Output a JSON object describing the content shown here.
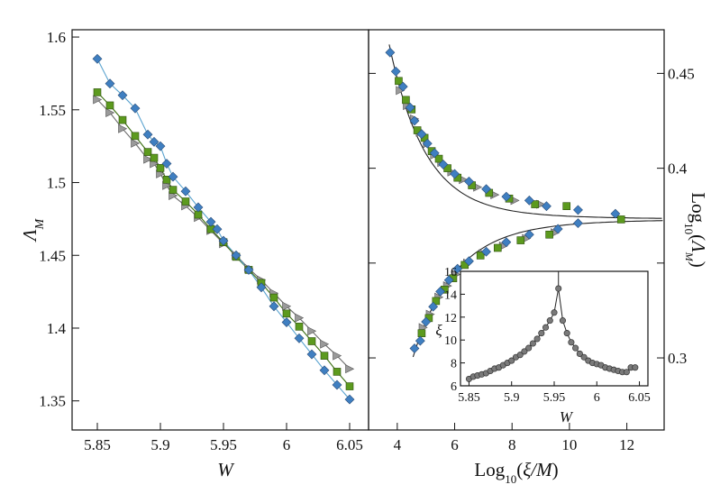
{
  "chart_data": [
    {
      "name": "left-panel",
      "type": "line",
      "xlabel": "W",
      "ylabel": "Λ_M",
      "xlim": [
        5.83,
        6.065
      ],
      "ylim": [
        1.33,
        1.605
      ],
      "x_ticks": [
        "5.85",
        "5.9",
        "5.95",
        "6",
        "6.05"
      ],
      "y_ticks": [
        "1.35",
        "1.4",
        "1.45",
        "1.5",
        "1.55",
        "1.6"
      ],
      "grid": false,
      "series": [
        {
          "marker": "diamond",
          "color": "#3f7fc1",
          "line_color": "#5aa3cf",
          "x": [
            5.85,
            5.86,
            5.87,
            5.88,
            5.89,
            5.895,
            5.9,
            5.905,
            5.91,
            5.92,
            5.93,
            5.94,
            5.945,
            5.95,
            5.96,
            5.97,
            5.98,
            5.99,
            6.0,
            6.01,
            6.02,
            6.03,
            6.04,
            6.05
          ],
          "y": [
            1.585,
            1.568,
            1.56,
            1.551,
            1.533,
            1.528,
            1.525,
            1.513,
            1.504,
            1.494,
            1.483,
            1.473,
            1.468,
            1.46,
            1.45,
            1.44,
            1.428,
            1.415,
            1.404,
            1.393,
            1.382,
            1.371,
            1.361,
            1.351
          ]
        },
        {
          "marker": "square",
          "color": "#5c9a1e",
          "line_color": "#3b6e10",
          "x": [
            5.85,
            5.86,
            5.87,
            5.88,
            5.89,
            5.895,
            5.9,
            5.905,
            5.91,
            5.92,
            5.93,
            5.94,
            5.95,
            5.96,
            5.97,
            5.98,
            5.99,
            6.0,
            6.01,
            6.02,
            6.03,
            6.04,
            6.05
          ],
          "y": [
            1.562,
            1.553,
            1.543,
            1.532,
            1.521,
            1.517,
            1.51,
            1.502,
            1.495,
            1.487,
            1.478,
            1.468,
            1.459,
            1.449,
            1.44,
            1.431,
            1.421,
            1.41,
            1.401,
            1.391,
            1.381,
            1.37,
            1.36
          ]
        },
        {
          "marker": "triangle-right",
          "color": "#9a9a9a",
          "line_color": "#6b6b6b",
          "x": [
            5.85,
            5.86,
            5.87,
            5.88,
            5.89,
            5.895,
            5.9,
            5.905,
            5.91,
            5.92,
            5.93,
            5.94,
            5.95,
            5.96,
            5.97,
            5.98,
            5.99,
            6.0,
            6.01,
            6.02,
            6.03,
            6.04,
            6.05
          ],
          "y": [
            1.557,
            1.548,
            1.537,
            1.527,
            1.516,
            1.513,
            1.506,
            1.498,
            1.491,
            1.484,
            1.476,
            1.467,
            1.458,
            1.45,
            1.441,
            1.433,
            1.424,
            1.415,
            1.407,
            1.398,
            1.389,
            1.381,
            1.372
          ]
        }
      ]
    },
    {
      "name": "right-panel",
      "type": "scatter",
      "xlabel": "Log10(ξ/M)",
      "ylabel": "Log10(Λ_M)",
      "xlim": [
        3.0,
        13.3
      ],
      "ylim": [
        0.262,
        0.473
      ],
      "x_ticks": [
        "4",
        "6",
        "8",
        "10",
        "12"
      ],
      "y_ticks": [
        "0.3",
        "0.35",
        "0.4",
        "0.45"
      ],
      "y_tick_labels": [
        "0.3",
        "0.4",
        "0.45"
      ],
      "grid": false,
      "series": [
        {
          "marker": "diamond",
          "color": "#3f7fc1",
          "x": [
            3.75,
            3.95,
            4.2,
            4.45,
            4.6,
            4.85,
            5.05,
            5.3,
            5.6,
            6.0,
            6.5,
            7.1,
            7.8,
            8.6,
            9.2,
            10.3,
            11.6,
            4.6,
            4.8,
            5.0,
            5.25,
            5.5,
            5.8,
            6.1,
            6.5,
            7.1,
            7.8,
            8.6,
            9.6,
            10.3
          ],
          "y": [
            0.461,
            0.451,
            0.443,
            0.432,
            0.425,
            0.418,
            0.413,
            0.408,
            0.402,
            0.397,
            0.393,
            0.389,
            0.385,
            0.383,
            0.38,
            0.378,
            0.376,
            0.305,
            0.309,
            0.319,
            0.327,
            0.335,
            0.341,
            0.347,
            0.351,
            0.356,
            0.361,
            0.365,
            0.368,
            0.371
          ]
        },
        {
          "marker": "square",
          "color": "#5c9a1e",
          "x": [
            4.05,
            4.3,
            4.5,
            4.7,
            4.95,
            5.2,
            5.45,
            5.75,
            6.1,
            6.6,
            7.2,
            7.9,
            8.8,
            9.9,
            11.8,
            4.85,
            5.1,
            5.35,
            5.65,
            5.95,
            6.35,
            6.9,
            7.5,
            8.3,
            9.3
          ],
          "y": [
            0.446,
            0.436,
            0.431,
            0.42,
            0.416,
            0.409,
            0.405,
            0.4,
            0.395,
            0.391,
            0.387,
            0.384,
            0.381,
            0.38,
            0.373,
            0.313,
            0.321,
            0.33,
            0.336,
            0.342,
            0.349,
            0.354,
            0.358,
            0.362,
            0.365
          ]
        },
        {
          "marker": "triangle-right",
          "color": "#9a9a9a",
          "x": [
            4.1,
            4.35,
            4.6,
            4.8,
            5.05,
            5.3,
            5.55,
            5.9,
            6.3,
            6.8,
            7.4,
            8.1,
            9.0,
            4.9,
            5.15,
            5.45,
            5.75,
            6.05,
            6.45,
            7.0,
            7.7,
            8.5,
            9.5
          ],
          "y": [
            0.441,
            0.433,
            0.426,
            0.419,
            0.413,
            0.407,
            0.403,
            0.398,
            0.394,
            0.39,
            0.386,
            0.383,
            0.381,
            0.316,
            0.323,
            0.332,
            0.338,
            0.344,
            0.35,
            0.355,
            0.359,
            0.363,
            0.366
          ]
        }
      ]
    },
    {
      "name": "inset",
      "type": "line",
      "xlabel": "W",
      "ylabel": "ξ",
      "xlim": [
        5.84,
        6.06
      ],
      "ylim": [
        6,
        16
      ],
      "x_ticks": [
        "5.85",
        "5.9",
        "5.95",
        "6",
        "6.05"
      ],
      "y_ticks": [
        "6",
        "8",
        "10",
        "12",
        "14",
        "16"
      ],
      "grid": false,
      "series": [
        {
          "marker": "circle",
          "color": "#7a7a7a",
          "x": [
            5.85,
            5.855,
            5.86,
            5.865,
            5.87,
            5.875,
            5.88,
            5.885,
            5.89,
            5.895,
            5.9,
            5.905,
            5.91,
            5.915,
            5.92,
            5.925,
            5.93,
            5.935,
            5.94,
            5.945,
            5.95,
            5.955,
            5.96,
            5.965,
            5.97,
            5.975,
            5.98,
            5.985,
            5.99,
            5.995,
            6.0,
            6.005,
            6.01,
            6.015,
            6.02,
            6.025,
            6.03,
            6.035,
            6.04,
            6.045
          ],
          "y": [
            6.6,
            6.8,
            6.9,
            7.0,
            7.1,
            7.3,
            7.5,
            7.6,
            7.8,
            8.0,
            8.2,
            8.5,
            8.7,
            9.0,
            9.3,
            9.7,
            10.1,
            10.6,
            11.1,
            11.7,
            12.4,
            14.5,
            11.7,
            10.6,
            9.8,
            9.3,
            8.8,
            8.5,
            8.2,
            8.0,
            7.9,
            7.8,
            7.6,
            7.5,
            7.4,
            7.3,
            7.2,
            7.2,
            7.6,
            7.6
          ]
        }
      ]
    }
  ]
}
